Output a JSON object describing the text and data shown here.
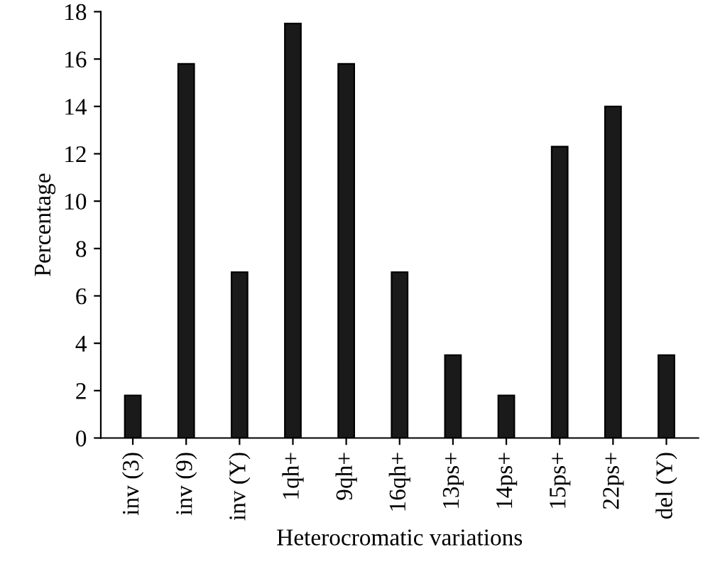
{
  "chart_data": {
    "type": "bar",
    "categories": [
      "inv (3)",
      "inv (9)",
      "inv (Y)",
      "1qh+",
      "9qh+",
      "16qh+",
      "13ps+",
      "14ps+",
      "15ps+",
      "22ps+",
      "del (Y)"
    ],
    "values": [
      1.8,
      15.8,
      7.0,
      17.5,
      15.8,
      7.0,
      3.5,
      1.8,
      12.3,
      14.0,
      3.5
    ],
    "color": "#1a1a1a",
    "xlabel": "Heterocromatic variations",
    "ylabel": "Percentage",
    "ylim": [
      0,
      18
    ],
    "yticks": [
      0,
      2,
      4,
      6,
      8,
      10,
      12,
      14,
      16,
      18
    ],
    "grid": false
  }
}
